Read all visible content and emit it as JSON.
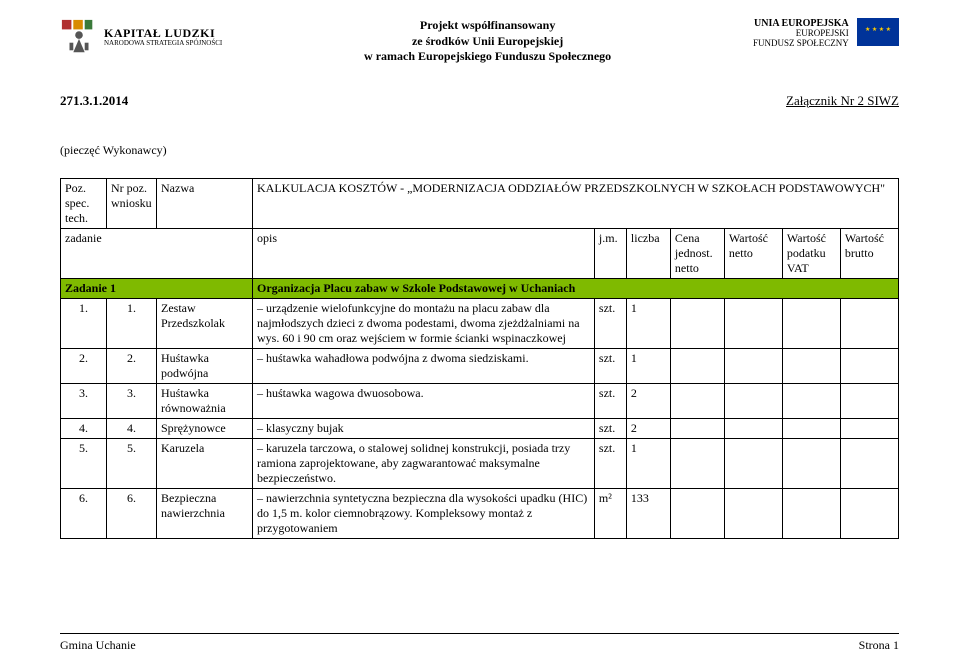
{
  "header": {
    "logo_left": {
      "line1": "KAPITAŁ LUDZKI",
      "line2": "NARODOWA STRATEGIA SPÓJNOŚCI"
    },
    "center": [
      "Projekt współfinansowany",
      "ze środków Unii Europejskiej",
      "w ramach Europejskiego Funduszu Społecznego"
    ],
    "logo_right": {
      "t1": "UNIA EUROPEJSKA",
      "t2": "EUROPEJSKI",
      "t3": "FUNDUSZ SPOŁECZNY"
    }
  },
  "doc": {
    "number": "271.3.1.2014",
    "attachment": "Załącznik Nr 2 SIWZ",
    "stamp": "(pieczęć Wykonawcy)"
  },
  "table": {
    "head": {
      "poz": "Poz. spec. tech.",
      "nr": "Nr poz. wniosku",
      "name": "Nazwa",
      "title": "KALKULACJA KOSZTÓW - „MODERNIZACJA ODDZIAŁÓW PRZEDSZKOLNYCH W SZKOŁACH PODSTAWOWYCH\"",
      "zadanie_label": "zadanie",
      "opis": "opis",
      "jm": "j.m.",
      "liczba": "liczba",
      "cena": "Cena jednost. netto",
      "wn": "Wartość netto",
      "vat": "Wartość podatku VAT",
      "wb": "Wartość brutto"
    },
    "section": {
      "label": "Zadanie 1",
      "title": "Organizacja Placu zabaw w Szkole Podstawowej w Uchaniach"
    },
    "rows": [
      {
        "poz": "1.",
        "nr": "1.",
        "name": "Zestaw Przedszkolak",
        "desc": "– urządzenie wielofunkcyjne do montażu na placu zabaw dla najmłodszych dzieci z dwoma podestami, dwoma zjeżdżalniami na wys. 60 i 90 cm oraz wejściem w formie ścianki wspinaczkowej",
        "jm": "szt.",
        "liczba": "1"
      },
      {
        "poz": "2.",
        "nr": "2.",
        "name": "Huśtawka podwójna",
        "desc": "– huśtawka wahadłowa podwójna z dwoma siedziskami.",
        "jm": "szt.",
        "liczba": "1"
      },
      {
        "poz": "3.",
        "nr": "3.",
        "name": "Huśtawka równoważnia",
        "desc": "– huśtawka wagowa dwuosobowa.",
        "jm": "szt.",
        "liczba": "2"
      },
      {
        "poz": "4.",
        "nr": "4.",
        "name": "Sprężynowce",
        "desc": "– klasyczny bujak",
        "jm": "szt.",
        "liczba": "2"
      },
      {
        "poz": "5.",
        "nr": "5.",
        "name": "Karuzela",
        "desc": "– karuzela tarczowa, o stalowej solidnej konstrukcji, posiada trzy ramiona zaprojektowane, aby zagwarantować maksymalne bezpieczeństwo.",
        "jm": "szt.",
        "liczba": "1"
      },
      {
        "poz": "6.",
        "nr": "6.",
        "name": "Bezpieczna nawierzchnia",
        "desc": "– nawierzchnia syntetyczna bezpieczna dla wysokości upadku (HIC) do 1,5 m. kolor ciemnobrązowy. Kompleksowy montaż z przygotowaniem",
        "jm": "m²",
        "liczba": "133"
      }
    ]
  },
  "footer": {
    "left": "Gmina Uchanie",
    "right": "Strona 1"
  },
  "colors": {
    "section_bg": "#7fba00",
    "flag_bg": "#003399",
    "flag_stars": "#ffcc00",
    "text": "#000000",
    "page_bg": "#ffffff"
  }
}
